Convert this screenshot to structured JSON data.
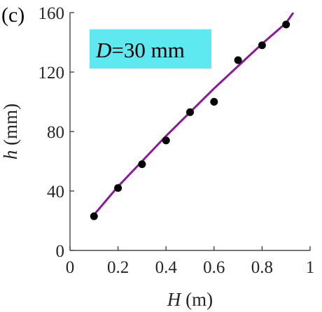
{
  "panel_label": "(c)",
  "annotation": {
    "var": "D",
    "text": "=30 mm",
    "bg": "#5ee8ef"
  },
  "colors": {
    "fit": "#8b1a9b",
    "points": "#000000",
    "axis": "#262626"
  },
  "chart_data": {
    "type": "scatter",
    "title": "",
    "xlabel": {
      "var": "H",
      "unit": " (m)"
    },
    "ylabel": {
      "var": "h",
      "unit": " (mm)"
    },
    "xlim": [
      0,
      1
    ],
    "ylim": [
      0,
      160
    ],
    "xticks": [
      0,
      0.2,
      0.4,
      0.6,
      0.8,
      1
    ],
    "xtick_labels": [
      "0",
      "0.2",
      "0.4",
      "0.6",
      "0.8",
      "1"
    ],
    "yticks": [
      0,
      40,
      80,
      120,
      160
    ],
    "ytick_labels": [
      "0",
      "40",
      "80",
      "120",
      "160"
    ],
    "grid": false,
    "series": [
      {
        "kind": "points",
        "x": [
          0.1,
          0.2,
          0.3,
          0.4,
          0.5,
          0.6,
          0.7,
          0.8,
          0.9
        ],
        "y": [
          23,
          42,
          58,
          74,
          93,
          100,
          128,
          138,
          152
        ]
      },
      {
        "kind": "fit-line",
        "x": [
          0.1,
          0.2,
          0.3,
          0.4,
          0.5,
          0.6,
          0.7,
          0.8,
          0.9,
          0.93
        ],
        "y": [
          24,
          43,
          60,
          77,
          93,
          109,
          124,
          139,
          153,
          160
        ]
      }
    ]
  }
}
